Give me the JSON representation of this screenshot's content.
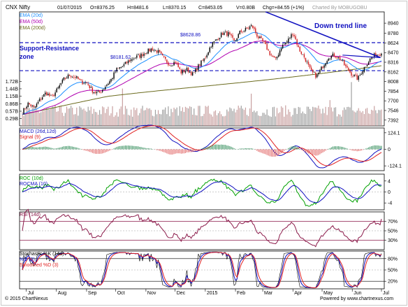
{
  "header": {
    "title": "CNX Nifty",
    "date": "01/07/2015",
    "open": "O=8376.25",
    "high": "H=8481.6",
    "low": "L=8370.15",
    "close": "C=8453.05",
    "volume": "V=0.80B",
    "change": "Chg=+84.55 (+1%)",
    "charted_by": "Charted By MOBUGOBU"
  },
  "footer": {
    "copyright": "© 2015 ChartNexus",
    "powered": "Powered by www.chartnexus.com"
  },
  "annotations": {
    "support_resistance_line1": "Support-Resistance",
    "support_resistance_line2": "zone",
    "down_trend": "Down trend line",
    "level_high": "$8628.86",
    "level_low": "$8181.62"
  },
  "colors": {
    "ema20": "#1e90ff",
    "ema50": "#b000b0",
    "ema200": "#6b6b1e",
    "up_candle": "#000000",
    "down_candle": "#d02020",
    "volume_up": "#c8a0a0",
    "volume_down": "#a0a0a0",
    "macd": "#1010c0",
    "signal": "#e02020",
    "roc": "#00a000",
    "rocma": "#1010c0",
    "rsi": "#8b1a4a",
    "stoch_k": "#1010c0",
    "stoch_d": "#e02020",
    "annotation": "#1010c0"
  },
  "chart_data": [
    {
      "type": "candlestick",
      "panel": "price",
      "title": "CNX Nifty",
      "legend": [
        "EMA (20d)",
        "EMA (50d)",
        "EMA (200d)"
      ],
      "legend_placement": "top-left",
      "y_ticks": [
        8940,
        8780,
        8624,
        8470,
        8316,
        8162,
        8008,
        7854,
        7700,
        7546,
        7392
      ],
      "y_range": [
        7300,
        9120
      ],
      "volume_ticks": [
        "1.72B",
        "1.44B",
        "1.15B",
        "0.86B",
        "0.57B",
        "0.29B"
      ],
      "volume_range_billions": [
        0.0,
        1.9
      ],
      "horizontal_levels": [
        8628.86,
        8181.62
      ],
      "trend_line": [
        {
          "date": "2015-03-04",
          "value": 9120
        },
        {
          "date": "2015-06-30",
          "value": 8390
        }
      ],
      "channel_line": [
        {
          "date": "2015-05-22",
          "value": 8430
        },
        {
          "date": "2015-06-30",
          "value": 8390
        }
      ],
      "months": [
        "Jul",
        "Aug",
        "Sep",
        "Oct",
        "Nov",
        "Dec",
        "2015",
        "Feb",
        "Mar",
        "Apr",
        "May",
        "Jun",
        "Jul"
      ],
      "weekly_closes": [
        7520,
        7660,
        7580,
        7720,
        7830,
        7750,
        7890,
        8040,
        8110,
        8080,
        8000,
        7980,
        7850,
        7820,
        7920,
        8030,
        8200,
        8250,
        8330,
        8390,
        8420,
        8480,
        8530,
        8490,
        8380,
        8280,
        8320,
        8150,
        8200,
        8120,
        8270,
        8380,
        8580,
        8680,
        8780,
        8770,
        8640,
        8800,
        8840,
        8900,
        8720,
        8630,
        8460,
        8350,
        8560,
        8650,
        8790,
        8520,
        8380,
        8170,
        8090,
        8250,
        8400,
        8430,
        8370,
        8230,
        8120,
        8050,
        8220,
        8360,
        8440,
        8453
      ]
    },
    {
      "type": "line",
      "panel": "MACD",
      "legend": [
        "MACD (26d,12d)",
        "Signal (9)"
      ],
      "y_ticks": [
        124.1,
        0,
        -124.1
      ],
      "y_range": [
        -160,
        160
      ]
    },
    {
      "type": "line",
      "panel": "ROC",
      "legend": [
        "ROC (10d)",
        "ROCMA (10)"
      ],
      "y_ticks": [
        4,
        0,
        -4
      ],
      "y_range": [
        -6.5,
        6.5
      ]
    },
    {
      "type": "line",
      "panel": "RSI",
      "legend": [
        "RSI (14d)"
      ],
      "y_ticks": [
        "70%",
        "50%",
        "30%"
      ],
      "y_range": [
        10,
        90
      ],
      "reference_levels": [
        70,
        50,
        30
      ],
      "last_value": 75
    },
    {
      "type": "line",
      "panel": "Stochastic",
      "legend": [
        "Stochastic %K (14d)",
        "%D (3)",
        "Smoothed %D (3)"
      ],
      "y_ticks": [
        "80%",
        "50%",
        "20%"
      ],
      "y_range": [
        0,
        100
      ],
      "reference_levels": [
        80,
        50,
        20
      ]
    }
  ]
}
